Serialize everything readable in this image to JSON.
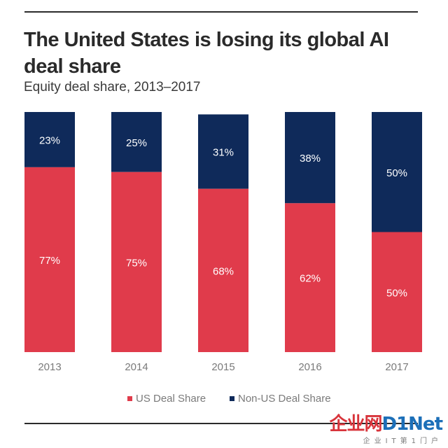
{
  "chart_data": {
    "type": "bar",
    "stacked": true,
    "title": "The United States is losing its global AI deal share",
    "subtitle": "Equity deal share, 2013–2017",
    "categories": [
      "2013",
      "2014",
      "2015",
      "2016",
      "2017"
    ],
    "series": [
      {
        "name": "US Deal Share",
        "values": [
          77,
          75,
          68,
          62,
          50
        ],
        "labels": [
          "77%",
          "75%",
          "68%",
          "62%",
          "50%"
        ],
        "color": "#e03b4b"
      },
      {
        "name": "Non-US Deal Share",
        "values": [
          23,
          25,
          31,
          38,
          50
        ],
        "labels": [
          "23%",
          "25%",
          "31%",
          "38%",
          "50%"
        ],
        "color": "#0f2a5a"
      }
    ],
    "ylim": [
      0,
      100
    ],
    "legend_position": "bottom",
    "grid": false
  },
  "watermark": {
    "brand_red": "企业网",
    "brand_blue": "D1Net",
    "tagline": "企业IT第1门户"
  }
}
